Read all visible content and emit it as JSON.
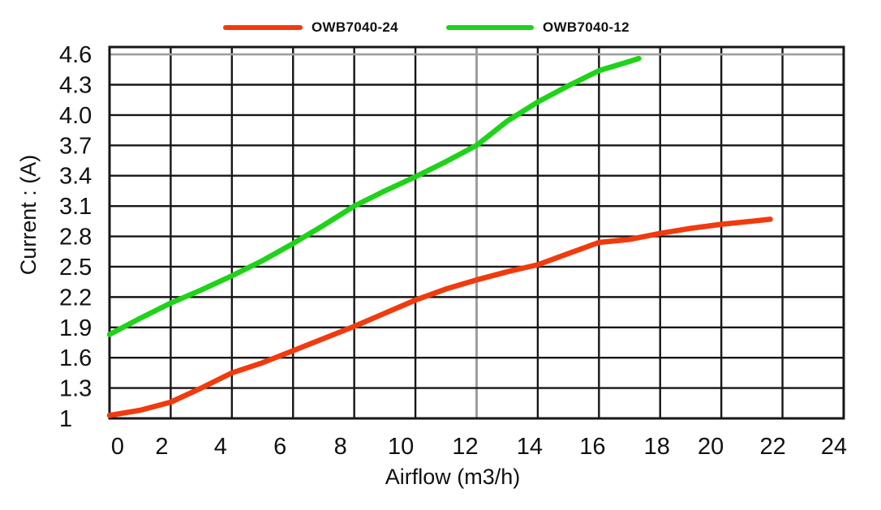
{
  "chart_data": {
    "type": "line",
    "title": "",
    "xlabel": "Airflow (m3/h)",
    "ylabel": "Current : (A)",
    "xlim": [
      0,
      24
    ],
    "ylim": [
      1,
      4.673
    ],
    "grid": true,
    "legend_position": "top",
    "x_ticks": [
      0,
      2,
      4,
      6,
      8,
      10,
      12,
      14,
      16,
      18,
      20,
      22,
      24
    ],
    "x_tick_labels": [
      "0",
      "2",
      "4",
      "6",
      "8",
      "10",
      "12",
      "14",
      "16",
      "18",
      "20",
      "22",
      "24"
    ],
    "y_ticks": [
      1,
      1.3,
      1.6,
      1.9,
      2.2,
      2.5,
      2.8,
      3.1,
      3.4,
      3.7,
      4.0,
      4.3,
      4.6
    ],
    "y_tick_labels": [
      "1",
      "1.3",
      "1.6",
      "1.9",
      "2.2",
      "2.5",
      "2.8",
      "3.1",
      "3.4",
      "3.7",
      "4.0",
      "4.3",
      "4.6"
    ],
    "grid_color": "#161616",
    "faded_gridline_color": "#9e9e9e",
    "faded_vertical_gridline_x": 12,
    "faded_horizontal_gridline_y": 4.6,
    "text_color": "#111111",
    "background_color": "#ffffff",
    "series": [
      {
        "name": "OWB7040-24",
        "color": "#f23a0d",
        "points": [
          [
            0,
            1.03
          ],
          [
            1,
            1.08
          ],
          [
            2,
            1.16
          ],
          [
            3,
            1.3
          ],
          [
            4,
            1.45
          ],
          [
            5,
            1.55
          ],
          [
            6,
            1.67
          ],
          [
            7,
            1.79
          ],
          [
            8,
            1.91
          ],
          [
            9,
            2.04
          ],
          [
            10,
            2.17
          ],
          [
            11,
            2.28
          ],
          [
            12,
            2.37
          ],
          [
            13,
            2.45
          ],
          [
            14,
            2.52
          ],
          [
            15,
            2.63
          ],
          [
            16,
            2.74
          ],
          [
            17,
            2.77
          ],
          [
            18,
            2.83
          ],
          [
            19,
            2.88
          ],
          [
            20,
            2.92
          ],
          [
            21,
            2.95
          ],
          [
            21.6,
            2.97
          ]
        ]
      },
      {
        "name": "OWB7040-12",
        "color": "#1ed318",
        "points": [
          [
            0,
            1.83
          ],
          [
            1,
            1.99
          ],
          [
            2,
            2.14
          ],
          [
            3,
            2.27
          ],
          [
            4,
            2.41
          ],
          [
            5,
            2.56
          ],
          [
            6,
            2.73
          ],
          [
            7,
            2.91
          ],
          [
            8,
            3.1
          ],
          [
            9,
            3.25
          ],
          [
            10,
            3.39
          ],
          [
            11,
            3.54
          ],
          [
            12,
            3.7
          ],
          [
            13,
            3.94
          ],
          [
            14,
            4.13
          ],
          [
            15,
            4.29
          ],
          [
            16,
            4.44
          ],
          [
            17,
            4.53
          ],
          [
            17.3,
            4.56
          ]
        ]
      }
    ]
  }
}
